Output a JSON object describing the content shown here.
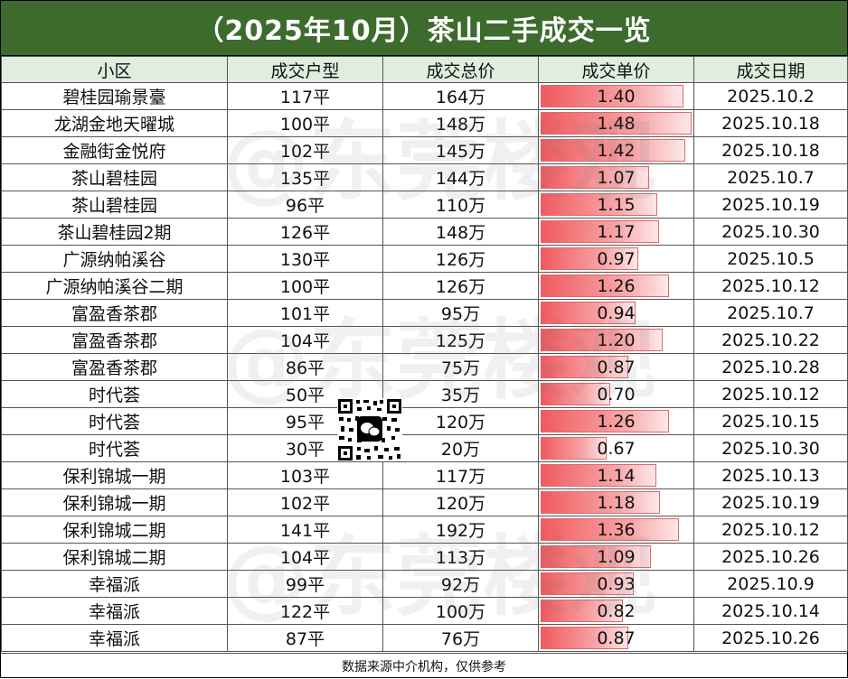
{
  "title": "（2025年10月）茶山二手成交一览",
  "headers": [
    "小区",
    "成交户型",
    "成交总价",
    "成交单价",
    "成交日期"
  ],
  "rows": [
    {
      "community": "碧桂园瑜景臺",
      "area": "117平",
      "total": "164万",
      "unit": "1.40",
      "date": "2025.10.2"
    },
    {
      "community": "龙湖金地天曜城",
      "area": "100平",
      "total": "148万",
      "unit": "1.48",
      "date": "2025.10.18"
    },
    {
      "community": "金融街金悦府",
      "area": "102平",
      "total": "145万",
      "unit": "1.42",
      "date": "2025.10.18"
    },
    {
      "community": "茶山碧桂园",
      "area": "135平",
      "total": "144万",
      "unit": "1.07",
      "date": "2025.10.7"
    },
    {
      "community": "茶山碧桂园",
      "area": "96平",
      "total": "110万",
      "unit": "1.15",
      "date": "2025.10.19"
    },
    {
      "community": "茶山碧桂园2期",
      "area": "126平",
      "total": "148万",
      "unit": "1.17",
      "date": "2025.10.30"
    },
    {
      "community": "广源纳帕溪谷",
      "area": "130平",
      "total": "126万",
      "unit": "0.97",
      "date": "2025.10.5"
    },
    {
      "community": "广源纳帕溪谷二期",
      "area": "100平",
      "total": "126万",
      "unit": "1.26",
      "date": "2025.10.12"
    },
    {
      "community": "富盈香茶郡",
      "area": "101平",
      "total": "95万",
      "unit": "0.94",
      "date": "2025.10.7"
    },
    {
      "community": "富盈香茶郡",
      "area": "104平",
      "total": "125万",
      "unit": "1.20",
      "date": "2025.10.22"
    },
    {
      "community": "富盈香茶郡",
      "area": "86平",
      "total": "75万",
      "unit": "0.87",
      "date": "2025.10.28"
    },
    {
      "community": "时代荟",
      "area": "50平",
      "total": "35万",
      "unit": "0.70",
      "date": "2025.10.12"
    },
    {
      "community": "时代荟",
      "area": "95平",
      "total": "120万",
      "unit": "1.26",
      "date": "2025.10.15"
    },
    {
      "community": "时代荟",
      "area": "30平",
      "total": "20万",
      "unit": "0.67",
      "date": "2025.10.30"
    },
    {
      "community": "保利锦城一期",
      "area": "103平",
      "total": "117万",
      "unit": "1.14",
      "date": "2025.10.13"
    },
    {
      "community": "保利锦城一期",
      "area": "102平",
      "total": "120万",
      "unit": "1.18",
      "date": "2025.10.19"
    },
    {
      "community": "保利锦城二期",
      "area": "141平",
      "total": "192万",
      "unit": "1.36",
      "date": "2025.10.12"
    },
    {
      "community": "保利锦城二期",
      "area": "104平",
      "total": "113万",
      "unit": "1.09",
      "date": "2025.10.26"
    },
    {
      "community": "幸福派",
      "area": "99平",
      "total": "92万",
      "unit": "0.93",
      "date": "2025.10.9"
    },
    {
      "community": "幸福派",
      "area": "122平",
      "total": "100万",
      "unit": "0.82",
      "date": "2025.10.14"
    },
    {
      "community": "幸福派",
      "area": "87平",
      "total": "76万",
      "unit": "0.87",
      "date": "2025.10.26"
    }
  ],
  "footer": "数据来源中介机构，仅供参考",
  "watermark": "@东莞楼观",
  "qr_icon": "wechat-qr-code-icon",
  "colors": {
    "title_bg": "#3d6b2d",
    "header_bg": "#dfeede",
    "bar": "#f05a5e"
  }
}
